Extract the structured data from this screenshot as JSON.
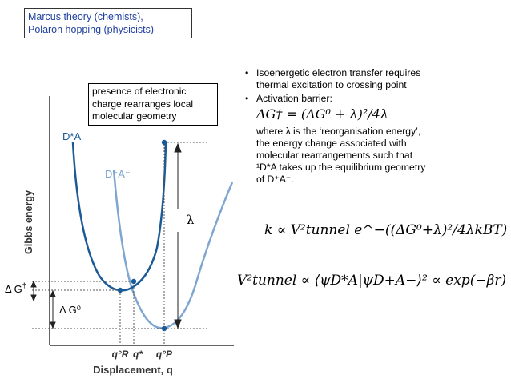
{
  "title_box": {
    "line1": "Marcus theory (chemists),",
    "line2": "Polaron hopping (physicists)"
  },
  "geometry_box": {
    "line1": "presence of electronic",
    "line2": "charge rearranges local",
    "line3": "molecular geometry"
  },
  "bullets": [
    {
      "line1": "Isoenergetic electron transfer requires",
      "line2": "thermal excitation to crossing point"
    },
    {
      "line1": "Activation barrier:"
    }
  ],
  "explanation": {
    "line1": "where λ is the ‘reorganisation energy’,",
    "line2": "the energy change associated with",
    "line3": "molecular rearrangements such that",
    "line4": "¹D*A takes up the equilibrium geometry",
    "line5": "of D⁺A⁻."
  },
  "formulas": {
    "barrier": "ΔG† = (ΔG⁰ + λ)²/4λ",
    "rate": "k ∝ V²tunnel e^−((ΔG⁰+λ)²/4λkBT)",
    "overlap": "V²tunnel ∝ ⟨ψD*A|ψD+A−⟩² ∝ exp(−βr)"
  },
  "plot": {
    "ylabel": "Gibbs energy",
    "xlabel": "Displacement, q",
    "curve_reactant_label": "D*A",
    "curve_product_label": "D⁺A⁻",
    "lambda_label": "λ",
    "dg_activation_label": "Δ G",
    "dg_activation_sup": "†",
    "dg0_label": "Δ G⁰",
    "xticks": [
      "q°R",
      "q*",
      "q°P"
    ],
    "colors": {
      "reactant": "#1a5a96",
      "product": "#7ea6cf",
      "guide": "#555555",
      "title_text": "#1f3fa0"
    }
  }
}
